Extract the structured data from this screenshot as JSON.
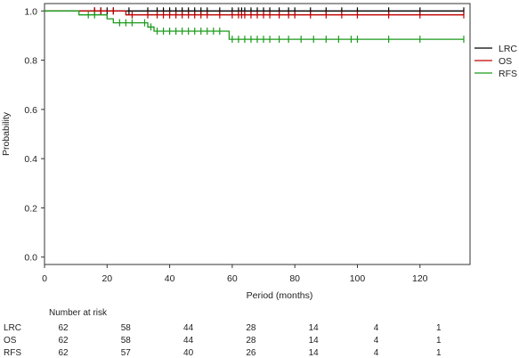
{
  "chart_data": {
    "type": "line",
    "subtype": "kaplan-meier",
    "title": "",
    "xlabel": "Period (months)",
    "ylabel": "Probability",
    "xlim": [
      0,
      136
    ],
    "ylim": [
      -0.03,
      1.03
    ],
    "xticks": [
      0,
      20,
      40,
      60,
      80,
      100,
      120
    ],
    "yticks": [
      0.0,
      0.2,
      0.4,
      0.6,
      0.8,
      1.0
    ],
    "ytick_labels": [
      "0.0",
      "0.2",
      "0.4",
      "0.6",
      "0.8",
      "1.0"
    ],
    "grid": false,
    "legend": "right",
    "series": [
      {
        "name": "LRC",
        "color": "#000000",
        "steps": [
          [
            0,
            1.0
          ],
          [
            134,
            1.0
          ]
        ],
        "censors": [
          16,
          18,
          20,
          22,
          27,
          33,
          36,
          38,
          40,
          42,
          44,
          46,
          48,
          50,
          52,
          56,
          60,
          62,
          63,
          64,
          66,
          68,
          70,
          72,
          75,
          78,
          80,
          85,
          90,
          95,
          100,
          110,
          120,
          134
        ]
      },
      {
        "name": "OS",
        "color": "#c00000",
        "steps": [
          [
            0,
            1.0
          ],
          [
            26,
            1.0
          ],
          [
            26,
            0.984
          ],
          [
            134,
            0.984
          ]
        ],
        "censors": [
          16,
          18,
          22,
          28,
          33,
          36,
          38,
          40,
          42,
          44,
          46,
          48,
          50,
          52,
          56,
          60,
          62,
          63,
          64,
          66,
          68,
          70,
          72,
          75,
          78,
          80,
          85,
          90,
          95,
          100,
          110,
          120,
          134
        ]
      },
      {
        "name": "RFS",
        "color": "#1a9a1a",
        "steps": [
          [
            0,
            1.0
          ],
          [
            11,
            1.0
          ],
          [
            11,
            0.984
          ],
          [
            20,
            0.984
          ],
          [
            20,
            0.968
          ],
          [
            22,
            0.968
          ],
          [
            22,
            0.952
          ],
          [
            33,
            0.952
          ],
          [
            33,
            0.935
          ],
          [
            35,
            0.935
          ],
          [
            35,
            0.918
          ],
          [
            59,
            0.918
          ],
          [
            59,
            0.885
          ],
          [
            134,
            0.885
          ]
        ],
        "censors": [
          14,
          16,
          24,
          26,
          28,
          32,
          34,
          36,
          38,
          40,
          42,
          44,
          46,
          48,
          50,
          52,
          54,
          56,
          60,
          62,
          64,
          66,
          68,
          70,
          72,
          75,
          78,
          82,
          86,
          90,
          94,
          98,
          100,
          110,
          120,
          134
        ]
      }
    ],
    "risk_table": {
      "title": "Number at risk",
      "times": [
        0,
        20,
        40,
        60,
        80,
        100,
        120
      ],
      "rows": [
        {
          "label": "LRC",
          "counts": [
            "62",
            "58",
            "44",
            "28",
            "14",
            "4",
            "1"
          ]
        },
        {
          "label": "OS",
          "counts": [
            "62",
            "58",
            "44",
            "28",
            "14",
            "4",
            "1"
          ]
        },
        {
          "label": "RFS",
          "counts": [
            "62",
            "57",
            "40",
            "26",
            "14",
            "4",
            "1"
          ]
        }
      ]
    }
  }
}
